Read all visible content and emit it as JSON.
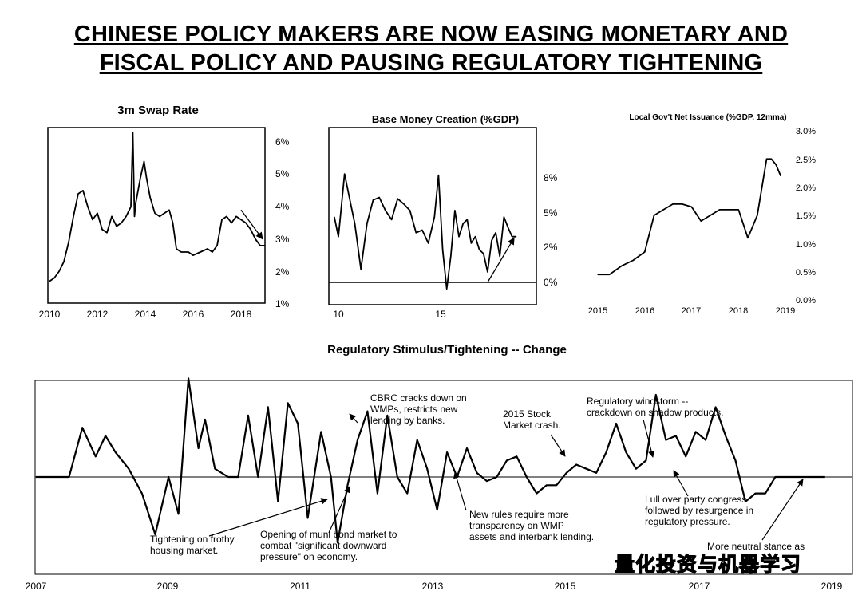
{
  "title": {
    "line1": "CHINESE POLICY MAKERS ARE NOW EASING MONETARY AND",
    "line2": "FISCAL POLICY AND PAUSING REGULATORY TIGHTENING"
  },
  "watermark": "量化投资与机器学习",
  "chart_data": [
    {
      "id": "swap",
      "type": "line",
      "title": "3m Swap Rate",
      "x_ticks": [
        "2010",
        "2012",
        "2014",
        "2016",
        "2018"
      ],
      "y_ticks": [
        "1%",
        "2%",
        "3%",
        "4%",
        "5%",
        "6%"
      ],
      "xlim": [
        2010,
        2019
      ],
      "ylim": [
        1,
        6.5
      ],
      "x": [
        2010.0,
        2010.2,
        2010.4,
        2010.6,
        2010.8,
        2011.0,
        2011.2,
        2011.4,
        2011.6,
        2011.8,
        2012.0,
        2012.2,
        2012.4,
        2012.6,
        2012.8,
        2013.0,
        2013.2,
        2013.4,
        2013.48,
        2013.55,
        2013.6,
        2013.8,
        2013.95,
        2014.05,
        2014.2,
        2014.4,
        2014.6,
        2014.8,
        2015.0,
        2015.15,
        2015.3,
        2015.5,
        2015.8,
        2016.0,
        2016.3,
        2016.6,
        2016.8,
        2017.0,
        2017.2,
        2017.4,
        2017.6,
        2017.8,
        2018.0,
        2018.2,
        2018.4,
        2018.6,
        2018.8,
        2019.0
      ],
      "y": [
        1.7,
        1.8,
        2.0,
        2.3,
        2.9,
        3.7,
        4.4,
        4.5,
        4.0,
        3.6,
        3.8,
        3.3,
        3.2,
        3.7,
        3.4,
        3.5,
        3.7,
        4.0,
        6.3,
        3.7,
        4.1,
        4.9,
        5.4,
        4.9,
        4.3,
        3.8,
        3.7,
        3.8,
        3.9,
        3.5,
        2.7,
        2.6,
        2.6,
        2.5,
        2.6,
        2.7,
        2.6,
        2.8,
        3.6,
        3.7,
        3.5,
        3.7,
        3.6,
        3.5,
        3.3,
        3.0,
        2.8,
        2.8
      ],
      "annotation_arrow": {
        "from": [
          2018.0,
          3.9
        ],
        "to": [
          2018.9,
          3.0
        ]
      }
    },
    {
      "id": "base",
      "type": "line",
      "title": "Base Money Creation (%GDP)",
      "x_ticks": [
        "10",
        "15"
      ],
      "y_ticks": [
        "0%",
        "2%",
        "5%",
        "8%"
      ],
      "xlim": [
        2009.8,
        2019.6
      ],
      "ylim": [
        -1,
        9
      ],
      "x": [
        2009.8,
        2010.0,
        2010.3,
        2010.6,
        2010.8,
        2011.1,
        2011.4,
        2011.7,
        2012.0,
        2012.3,
        2012.6,
        2012.9,
        2013.2,
        2013.5,
        2013.8,
        2014.1,
        2014.4,
        2014.7,
        2014.9,
        2015.1,
        2015.3,
        2015.5,
        2015.7,
        2015.9,
        2016.1,
        2016.3,
        2016.5,
        2016.7,
        2016.9,
        2017.1,
        2017.3,
        2017.5,
        2017.7,
        2017.9,
        2018.1,
        2018.3,
        2018.5,
        2018.7
      ],
      "y": [
        5.0,
        3.5,
        8.3,
        6.0,
        4.5,
        1.0,
        4.5,
        6.3,
        6.5,
        5.5,
        4.8,
        6.4,
        6.0,
        5.5,
        3.8,
        4.0,
        3.0,
        5.0,
        8.2,
        2.5,
        -0.5,
        2.0,
        5.5,
        3.5,
        4.5,
        4.8,
        3.0,
        3.5,
        2.5,
        2.2,
        0.8,
        3.2,
        3.8,
        2.0,
        5.0,
        4.2,
        3.5,
        3.5
      ],
      "annotation_arrow": {
        "from": [
          2017.3,
          0.0
        ],
        "to": [
          2018.6,
          3.4
        ]
      }
    },
    {
      "id": "lgov",
      "type": "line",
      "title": "Local Gov't Net Issuance (%GDP, 12mma)",
      "x_ticks": [
        "2015",
        "2016",
        "2017",
        "2018",
        "2019"
      ],
      "y_ticks": [
        "0.0%",
        "0.5%",
        "1.0%",
        "1.5%",
        "2.0%",
        "2.5%",
        "3.0%"
      ],
      "xlim": [
        2015,
        2019.2
      ],
      "ylim": [
        0,
        3.0
      ],
      "x": [
        2015.0,
        2015.25,
        2015.5,
        2015.75,
        2016.0,
        2016.2,
        2016.4,
        2016.6,
        2016.8,
        2017.0,
        2017.2,
        2017.4,
        2017.6,
        2017.8,
        2018.0,
        2018.2,
        2018.4,
        2018.6,
        2018.7,
        2018.8,
        2018.9
      ],
      "y": [
        0.45,
        0.45,
        0.6,
        0.7,
        0.85,
        1.5,
        1.6,
        1.7,
        1.7,
        1.65,
        1.4,
        1.5,
        1.6,
        1.6,
        1.6,
        1.1,
        1.5,
        2.5,
        2.5,
        2.4,
        2.2
      ]
    },
    {
      "id": "reg",
      "type": "line",
      "title": "Regulatory Stimulus/Tightening -- Change",
      "x_ticks": [
        "2007",
        "2009",
        "2011",
        "2013",
        "2015",
        "2017",
        "2019"
      ],
      "xlim": [
        2007,
        2019
      ],
      "ylim": [
        -1.0,
        1.0
      ],
      "baseline": 0,
      "x": [
        2007.0,
        2007.5,
        2007.7,
        2007.9,
        2008.05,
        2008.2,
        2008.4,
        2008.6,
        2008.8,
        2009.0,
        2009.15,
        2009.3,
        2009.45,
        2009.55,
        2009.7,
        2009.9,
        2010.05,
        2010.2,
        2010.35,
        2010.5,
        2010.65,
        2010.8,
        2010.95,
        2011.1,
        2011.3,
        2011.45,
        2011.55,
        2011.7,
        2011.85,
        2012.0,
        2012.15,
        2012.3,
        2012.45,
        2012.6,
        2012.75,
        2012.9,
        2013.05,
        2013.2,
        2013.35,
        2013.5,
        2013.65,
        2013.8,
        2013.95,
        2014.1,
        2014.25,
        2014.4,
        2014.55,
        2014.7,
        2014.85,
        2015.0,
        2015.15,
        2015.3,
        2015.45,
        2015.6,
        2015.75,
        2015.9,
        2016.05,
        2016.2,
        2016.35,
        2016.5,
        2016.65,
        2016.8,
        2016.95,
        2017.1,
        2017.25,
        2017.4,
        2017.55,
        2017.7,
        2017.85,
        2018.0,
        2018.15,
        2018.3,
        2018.45,
        2018.6,
        2018.75,
        2018.9
      ],
      "y": [
        0.0,
        0.0,
        0.6,
        0.25,
        0.5,
        0.3,
        0.1,
        -0.2,
        -0.7,
        0.0,
        -0.45,
        1.2,
        0.35,
        0.7,
        0.1,
        0.0,
        0.0,
        0.75,
        0.0,
        0.85,
        -0.3,
        0.9,
        0.65,
        -0.5,
        0.55,
        0.0,
        -0.8,
        -0.1,
        0.45,
        0.8,
        -0.2,
        0.75,
        0.0,
        -0.2,
        0.45,
        0.1,
        -0.4,
        0.3,
        0.0,
        0.35,
        0.05,
        -0.05,
        0.0,
        0.2,
        0.25,
        0.0,
        -0.2,
        -0.1,
        -0.1,
        0.05,
        0.15,
        0.1,
        0.05,
        0.3,
        0.65,
        0.3,
        0.1,
        0.2,
        1.0,
        0.45,
        0.5,
        0.25,
        0.55,
        0.45,
        0.85,
        0.5,
        0.2,
        -0.3,
        -0.2,
        -0.2,
        0.0,
        0.0,
        0.0,
        0.0,
        0.0,
        0.0
      ],
      "annotations": [
        {
          "text": [
            "Tightening on frothy",
            "housing market."
          ],
          "arrow_to": [
            2010.0,
            -0.05
          ]
        },
        {
          "text": [
            "Opening of muni bond market to",
            "combat \"significant downward",
            "pressure\" on economy."
          ],
          "arrow_to": [
            2011.55,
            -0.05
          ]
        },
        {
          "text": [
            "CBRC cracks down on",
            "WMPs, restricts new",
            "lending by banks."
          ],
          "arrow_to": [
            2011.5,
            0.8
          ]
        },
        {
          "text": [
            "2015 Stock",
            "Market crash."
          ],
          "arrow_to": [
            2015.0,
            0.2
          ]
        },
        {
          "text": [
            "New rules require more",
            "transparency on WMP",
            "assets and interbank lending."
          ],
          "arrow_to": [
            2013.3,
            0.0
          ]
        },
        {
          "text": [
            "Regulatory windstorm --",
            "crackdown on shadow products."
          ],
          "arrow_to": [
            2016.1,
            0.25
          ]
        },
        {
          "text": [
            "Lull over party congress",
            "followed by resurgence in",
            "regulatory pressure."
          ],
          "arrow_to": [
            2016.7,
            0.0
          ]
        },
        {
          "text": [
            "More neutral stance as"
          ],
          "arrow_to": [
            2018.4,
            0.0
          ]
        }
      ]
    }
  ]
}
